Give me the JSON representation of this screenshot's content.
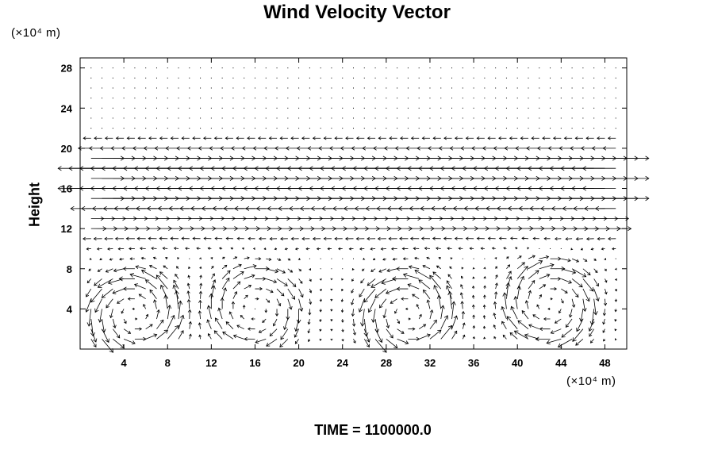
{
  "chart_data": {
    "type": "vector-field",
    "title": "Wind Velocity Vector",
    "ylabel": "Height",
    "y_unit_label": "(×10⁴ m)",
    "x_unit_label": "(×10⁴ m)",
    "footer": "TIME = 1100000.0",
    "xlim": [
      0,
      50
    ],
    "ylim": [
      0,
      29
    ],
    "x_ticks": [
      4,
      8,
      12,
      16,
      20,
      24,
      28,
      32,
      36,
      40,
      44,
      48
    ],
    "y_ticks": [
      4,
      8,
      12,
      16,
      20,
      24,
      28
    ],
    "grid": false,
    "line_color": "#000000",
    "layers": [
      {
        "y_range": [
          22,
          29
        ],
        "u": 0.0,
        "note": "near-calm upper level"
      },
      {
        "y": 21,
        "u": -0.6
      },
      {
        "y": 20,
        "u": -1.0
      },
      {
        "y": 19,
        "u": 2.6
      },
      {
        "y": 18,
        "u": -2.6
      },
      {
        "y": 17,
        "u": 2.6
      },
      {
        "y": 16,
        "u": -2.6
      },
      {
        "y": 15,
        "u": 2.6
      },
      {
        "y": 14,
        "u": -1.6
      },
      {
        "y": 13,
        "u": 1.0
      },
      {
        "y": 12,
        "u": 1.2
      },
      {
        "y": 11,
        "u": -0.6
      },
      {
        "y": 10,
        "u": -0.3
      }
    ],
    "vortices": [
      {
        "x": 5,
        "y": 3.5,
        "radius": 4,
        "rotation": "ccw",
        "strength": 1.4
      },
      {
        "x": 16,
        "y": 4,
        "radius": 4,
        "rotation": "cw",
        "strength": 1.1
      },
      {
        "x": 30,
        "y": 3.5,
        "radius": 4,
        "rotation": "ccw",
        "strength": 1.4
      },
      {
        "x": 43,
        "y": 4.5,
        "radius": 4,
        "rotation": "cw",
        "strength": 1.3
      }
    ]
  }
}
